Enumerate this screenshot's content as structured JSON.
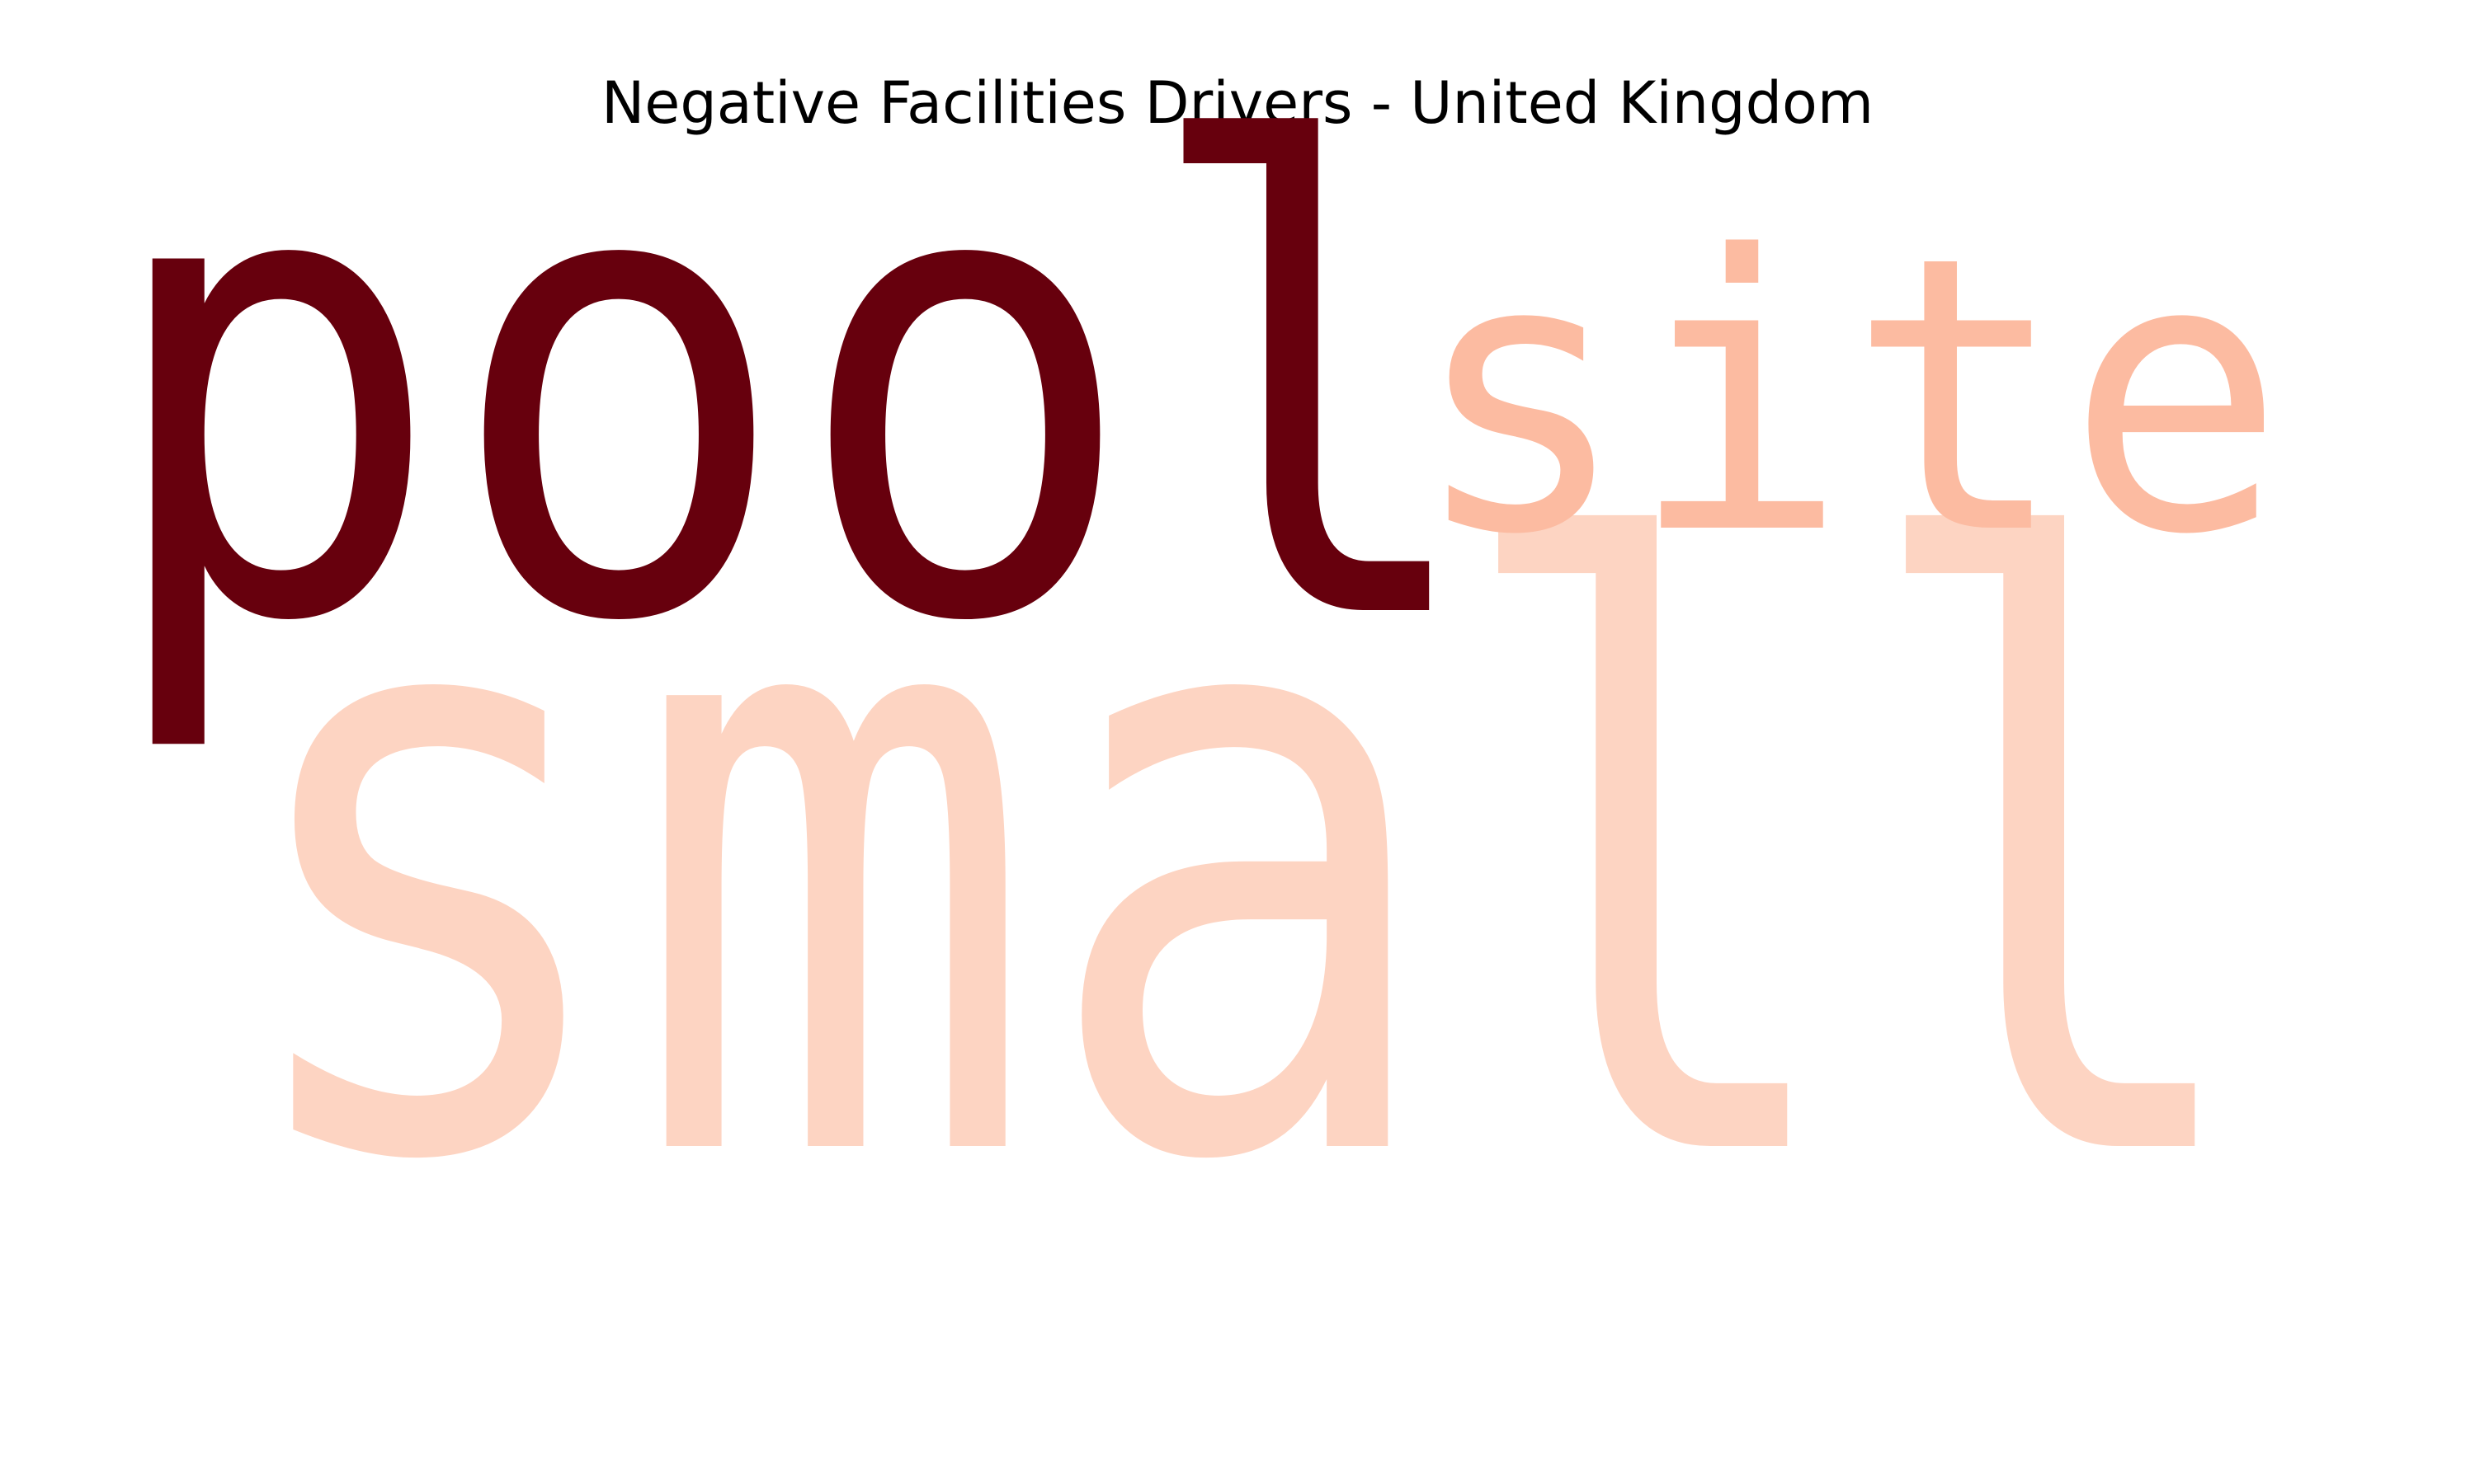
{
  "chart_data": {
    "type": "wordcloud",
    "title": "Negative Facilities Drivers - United Kingdom",
    "colormap": "Reds",
    "words": [
      {
        "text": "pool",
        "weight": 1.0,
        "color": "#67000d"
      },
      {
        "text": "small",
        "weight": 0.28,
        "color": "#fdd4c2"
      },
      {
        "text": "site",
        "weight": 0.35,
        "color": "#fcbba1"
      }
    ]
  }
}
